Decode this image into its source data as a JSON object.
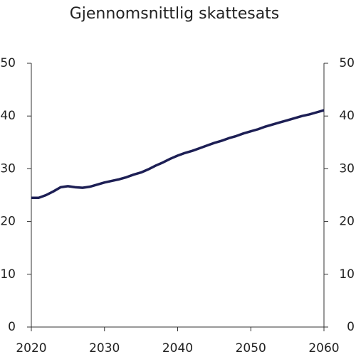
{
  "chart_data": {
    "type": "line",
    "title": "Gjennomsnittlig skattesats",
    "x": [
      2020,
      2021,
      2022,
      2023,
      2024,
      2025,
      2026,
      2027,
      2028,
      2029,
      2030,
      2031,
      2032,
      2033,
      2034,
      2035,
      2036,
      2037,
      2038,
      2039,
      2040,
      2041,
      2042,
      2043,
      2044,
      2045,
      2046,
      2047,
      2048,
      2049,
      2050,
      2051,
      2052,
      2053,
      2054,
      2055,
      2056,
      2057,
      2058,
      2059,
      2060
    ],
    "series": [
      {
        "color": "#1d1f55",
        "values": [
          24.5,
          24.5,
          25.0,
          25.7,
          26.5,
          26.7,
          26.5,
          26.4,
          26.6,
          27.0,
          27.4,
          27.7,
          28.0,
          28.4,
          28.9,
          29.3,
          29.9,
          30.6,
          31.2,
          31.9,
          32.5,
          33.0,
          33.4,
          33.9,
          34.4,
          34.9,
          35.3,
          35.8,
          36.2,
          36.7,
          37.1,
          37.5,
          38.0,
          38.4,
          38.8,
          39.2,
          39.6,
          40.0,
          40.3,
          40.7,
          41.1
        ]
      }
    ],
    "xlim": [
      2020,
      2060
    ],
    "xticks": [
      2020,
      2030,
      2040,
      2050,
      2060
    ],
    "ylim": [
      0,
      50
    ],
    "yticks": [
      0,
      10,
      20,
      30,
      40,
      50
    ],
    "y2lim": [
      0,
      50
    ],
    "y2ticks": [
      0,
      10,
      20,
      30,
      40,
      50
    ],
    "grid": false
  }
}
